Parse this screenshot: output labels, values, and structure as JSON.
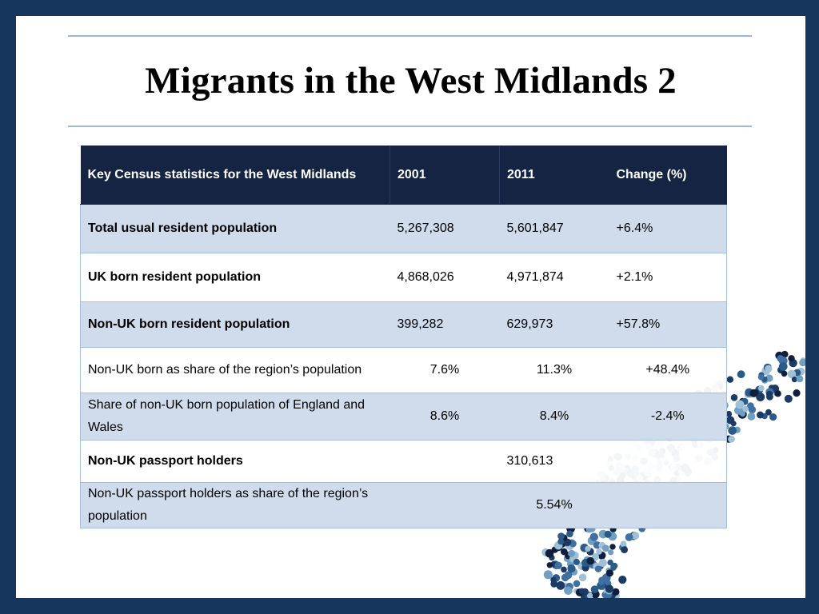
{
  "title": "Migrants in the West Midlands 2",
  "table": {
    "headers": [
      "Key Census statistics for the West Midlands",
      "2001",
      "2011",
      "Change (%)"
    ],
    "rows": [
      {
        "label": "Total usual resident population",
        "y2001": "5,267,308",
        "y2011": "5,601,847",
        "change": "+6.4%"
      },
      {
        "label": "UK born resident population",
        "y2001": "4,868,026",
        "y2011": "4,971,874",
        "change": "+2.1%"
      },
      {
        "label": "Non-UK born resident population",
        "y2001": "399,282",
        "y2011": "629,973",
        "change": "+57.8%"
      },
      {
        "label": "Non-UK born as share of the region’s population",
        "y2001": "7.6%",
        "y2011": "11.3%",
        "change": "+48.4%"
      },
      {
        "label": "Share of non-UK born population of England and Wales",
        "y2001": "8.6%",
        "y2011": "8.4%",
        "change": "-2.4%"
      },
      {
        "label": "Non-UK passport holders",
        "y2001": "",
        "y2011": "310,613",
        "change": ""
      },
      {
        "label": "Non-UK passport holders as share of the region’s population",
        "y2001": "",
        "y2011": "5.54%",
        "change": ""
      }
    ]
  },
  "colors": {
    "frame": "#17365d",
    "header_bg": "#142442",
    "row_shade": "#d0dcec",
    "rule": "#9cbad8",
    "dot_palette": [
      "#0f1f3d",
      "#1c3a66",
      "#3f6fa3",
      "#6f9fc2",
      "#9fc0d6",
      "#2b5a86"
    ]
  }
}
